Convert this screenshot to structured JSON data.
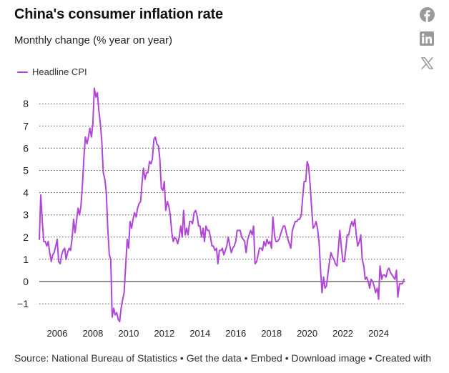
{
  "header": {
    "title": "China's consumer inflation rate",
    "subtitle": "Monthly change (% year on year)"
  },
  "share": [
    {
      "icon": "facebook-icon"
    },
    {
      "icon": "linkedin-icon"
    },
    {
      "icon": "x-icon"
    }
  ],
  "footer": {
    "source": "Source: National Bureau of Statistics",
    "get_data": "Get the data",
    "embed": "Embed",
    "download": "Download image",
    "created": "Created with",
    "separator": " • "
  },
  "chart_data": {
    "type": "line",
    "title": "China's consumer inflation rate",
    "subtitle": "Monthly change (% year on year)",
    "xlabel": "",
    "ylabel": "",
    "xlim": [
      2005.0,
      2025.5
    ],
    "ylim": [
      -1.5,
      8.8
    ],
    "yticks": [
      -1,
      0,
      1,
      2,
      3,
      4,
      5,
      6,
      7,
      8
    ],
    "xticks": [
      2006,
      2008,
      2010,
      2012,
      2014,
      2016,
      2018,
      2020,
      2022,
      2024
    ],
    "grid": "horizontal dotted",
    "legend": "top-left",
    "colors": {
      "series": "#b146d6",
      "zero_line": "#222222",
      "grid": "#555555"
    },
    "series": [
      {
        "name": "Headline CPI",
        "x": [
          2005.0,
          2005.08,
          2005.17,
          2005.25,
          2005.33,
          2005.42,
          2005.5,
          2005.58,
          2005.67,
          2005.75,
          2005.83,
          2005.92,
          2006.0,
          2006.08,
          2006.17,
          2006.25,
          2006.33,
          2006.42,
          2006.5,
          2006.58,
          2006.67,
          2006.75,
          2006.83,
          2006.92,
          2007.0,
          2007.08,
          2007.17,
          2007.25,
          2007.33,
          2007.42,
          2007.5,
          2007.58,
          2007.67,
          2007.75,
          2007.83,
          2007.92,
          2008.0,
          2008.08,
          2008.17,
          2008.25,
          2008.33,
          2008.42,
          2008.5,
          2008.58,
          2008.67,
          2008.75,
          2008.83,
          2008.92,
          2009.0,
          2009.08,
          2009.17,
          2009.25,
          2009.33,
          2009.42,
          2009.5,
          2009.58,
          2009.67,
          2009.75,
          2009.83,
          2009.92,
          2010.0,
          2010.08,
          2010.17,
          2010.25,
          2010.33,
          2010.42,
          2010.5,
          2010.58,
          2010.67,
          2010.75,
          2010.83,
          2010.92,
          2011.0,
          2011.08,
          2011.17,
          2011.25,
          2011.33,
          2011.42,
          2011.5,
          2011.58,
          2011.67,
          2011.75,
          2011.83,
          2011.92,
          2012.0,
          2012.08,
          2012.17,
          2012.25,
          2012.33,
          2012.42,
          2012.5,
          2012.58,
          2012.67,
          2012.75,
          2012.83,
          2012.92,
          2013.0,
          2013.08,
          2013.17,
          2013.25,
          2013.33,
          2013.42,
          2013.5,
          2013.58,
          2013.67,
          2013.75,
          2013.83,
          2013.92,
          2014.0,
          2014.08,
          2014.17,
          2014.25,
          2014.33,
          2014.42,
          2014.5,
          2014.58,
          2014.67,
          2014.75,
          2014.83,
          2014.92,
          2015.0,
          2015.08,
          2015.17,
          2015.25,
          2015.33,
          2015.42,
          2015.5,
          2015.58,
          2015.67,
          2015.75,
          2015.83,
          2015.92,
          2016.0,
          2016.08,
          2016.17,
          2016.25,
          2016.33,
          2016.42,
          2016.5,
          2016.58,
          2016.67,
          2016.75,
          2016.83,
          2016.92,
          2017.0,
          2017.08,
          2017.17,
          2017.25,
          2017.33,
          2017.42,
          2017.5,
          2017.58,
          2017.67,
          2017.75,
          2017.83,
          2017.92,
          2018.0,
          2018.08,
          2018.17,
          2018.25,
          2018.33,
          2018.42,
          2018.5,
          2018.58,
          2018.67,
          2018.75,
          2018.83,
          2018.92,
          2019.0,
          2019.08,
          2019.17,
          2019.25,
          2019.33,
          2019.42,
          2019.5,
          2019.58,
          2019.67,
          2019.75,
          2019.83,
          2019.92,
          2020.0,
          2020.08,
          2020.17,
          2020.25,
          2020.33,
          2020.42,
          2020.5,
          2020.58,
          2020.67,
          2020.75,
          2020.83,
          2020.92,
          2021.0,
          2021.08,
          2021.17,
          2021.25,
          2021.33,
          2021.42,
          2021.5,
          2021.58,
          2021.67,
          2021.75,
          2021.83,
          2021.92,
          2022.0,
          2022.08,
          2022.17,
          2022.25,
          2022.33,
          2022.42,
          2022.5,
          2022.58,
          2022.67,
          2022.75,
          2022.83,
          2022.92,
          2023.0,
          2023.08,
          2023.17,
          2023.25,
          2023.33,
          2023.42,
          2023.5,
          2023.58,
          2023.67,
          2023.75,
          2023.83,
          2023.92,
          2024.0,
          2024.08,
          2024.17,
          2024.25,
          2024.33,
          2024.42,
          2024.5,
          2024.58,
          2024.67,
          2024.75,
          2024.83,
          2024.92,
          2025.0,
          2025.08,
          2025.17,
          2025.25,
          2025.33,
          2025.42
        ],
        "values": [
          1.9,
          3.9,
          2.7,
          1.8,
          1.8,
          1.6,
          1.8,
          1.3,
          0.9,
          1.2,
          1.3,
          1.6,
          1.9,
          0.9,
          0.8,
          1.2,
          1.4,
          1.5,
          1.0,
          1.3,
          1.5,
          1.4,
          1.9,
          2.8,
          2.2,
          2.7,
          3.3,
          3.0,
          3.4,
          4.4,
          5.6,
          6.5,
          6.2,
          6.5,
          6.9,
          6.5,
          7.1,
          8.7,
          8.3,
          8.5,
          7.7,
          7.1,
          6.3,
          4.9,
          4.6,
          4.0,
          2.4,
          1.2,
          1.0,
          -1.6,
          -1.2,
          -1.5,
          -1.4,
          -1.7,
          -1.8,
          -1.2,
          -0.8,
          -0.5,
          0.6,
          1.9,
          1.5,
          2.7,
          2.4,
          2.8,
          3.1,
          2.9,
          3.3,
          3.5,
          3.6,
          4.4,
          5.1,
          4.6,
          4.9,
          4.9,
          5.4,
          5.3,
          5.5,
          6.4,
          6.5,
          6.2,
          6.1,
          5.5,
          4.2,
          4.1,
          4.5,
          3.2,
          3.6,
          3.4,
          3.0,
          2.2,
          1.8,
          2.0,
          1.9,
          1.7,
          2.0,
          2.5,
          2.0,
          3.2,
          2.1,
          2.4,
          2.1,
          2.7,
          2.7,
          2.6,
          3.1,
          3.2,
          3.0,
          2.5,
          2.5,
          2.0,
          2.4,
          1.8,
          2.5,
          2.3,
          2.3,
          2.0,
          1.6,
          1.6,
          1.4,
          1.5,
          0.8,
          1.4,
          1.4,
          1.5,
          1.2,
          1.4,
          1.6,
          2.0,
          1.6,
          1.3,
          1.5,
          1.6,
          1.8,
          2.3,
          2.3,
          2.3,
          2.0,
          1.9,
          1.8,
          1.3,
          1.9,
          2.1,
          2.3,
          2.1,
          2.5,
          0.8,
          0.9,
          1.2,
          1.5,
          1.5,
          1.4,
          1.8,
          1.6,
          1.9,
          1.7,
          1.8,
          1.5,
          2.9,
          2.1,
          1.8,
          1.8,
          1.9,
          2.1,
          2.3,
          2.5,
          2.5,
          2.2,
          1.9,
          1.7,
          1.5,
          2.3,
          2.5,
          2.7,
          2.7,
          2.8,
          2.8,
          3.0,
          3.8,
          4.5,
          4.5,
          5.4,
          5.2,
          4.3,
          3.3,
          2.4,
          2.5,
          2.7,
          2.4,
          1.7,
          0.5,
          -0.5,
          0.2,
          -0.3,
          -0.2,
          0.4,
          0.9,
          1.3,
          1.1,
          1.0,
          0.8,
          0.7,
          1.5,
          2.3,
          1.5,
          0.9,
          0.9,
          1.5,
          2.1,
          2.1,
          2.5,
          2.7,
          2.5,
          2.8,
          2.1,
          1.6,
          1.8,
          2.1,
          1.0,
          0.7,
          0.1,
          0.2,
          0.0,
          -0.3,
          0.1,
          0.0,
          -0.2,
          -0.5,
          -0.3,
          -0.8,
          0.7,
          0.1,
          0.3,
          0.3,
          0.2,
          0.5,
          0.6,
          0.4,
          0.3,
          0.2,
          0.1,
          0.5,
          -0.7,
          -0.1,
          -0.1,
          -0.1,
          0.1
        ]
      }
    ]
  }
}
